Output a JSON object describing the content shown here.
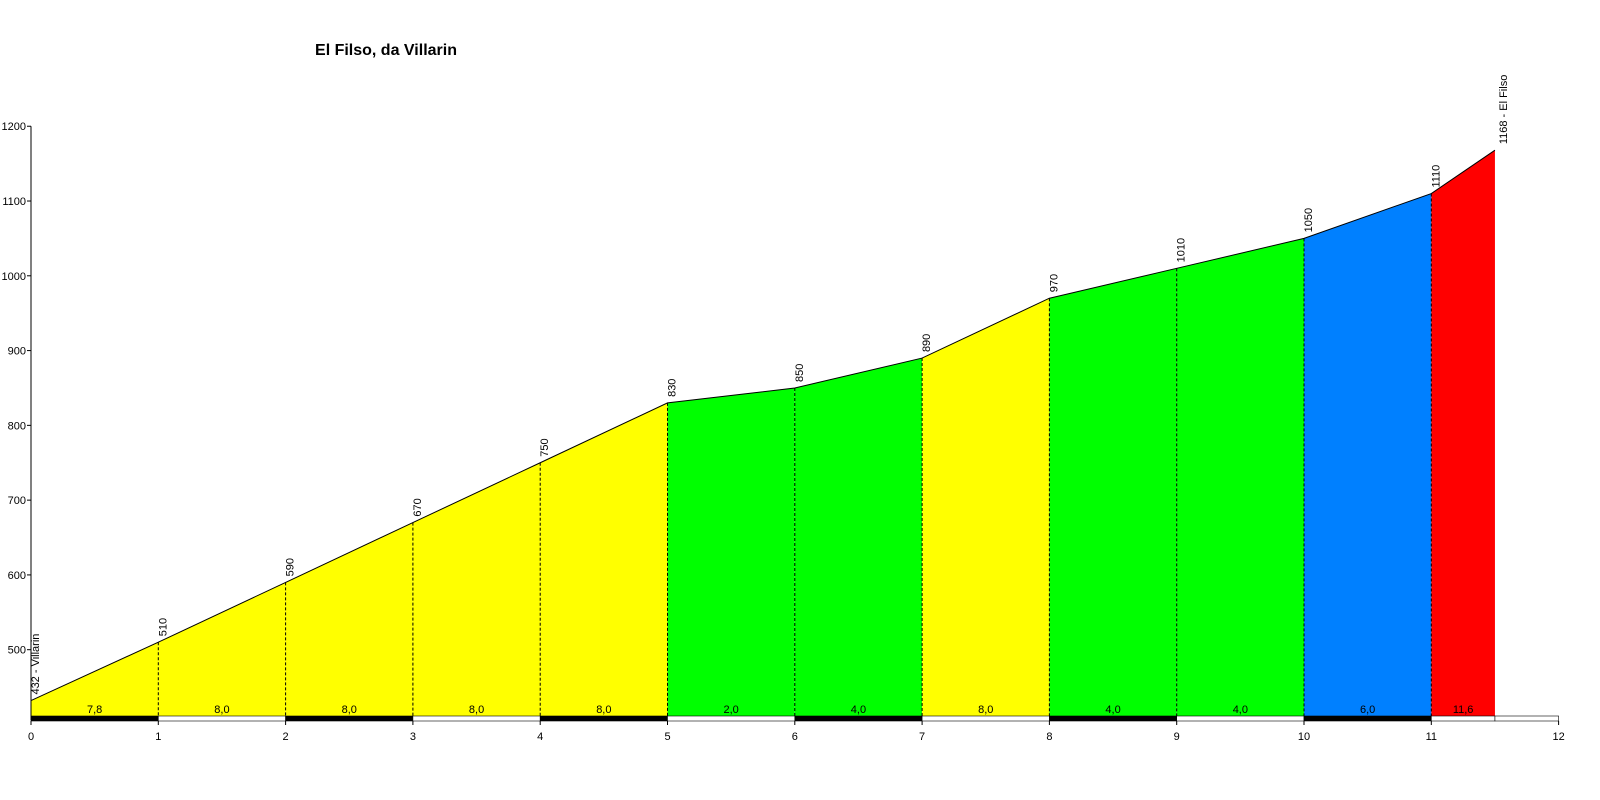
{
  "chart_data": {
    "type": "area",
    "title": "El Filso, da Villarin",
    "xlabel": "",
    "ylabel": "",
    "xlim": [
      0,
      12
    ],
    "ylim": [
      410,
      1200
    ],
    "x_ticks": [
      "0",
      "1",
      "2",
      "3",
      "4",
      "5",
      "6",
      "7",
      "8",
      "9",
      "10",
      "11",
      "12"
    ],
    "y_ticks": [
      "500",
      "600",
      "700",
      "800",
      "900",
      "1000",
      "1100",
      "1200"
    ],
    "points": [
      {
        "km": 0,
        "elev": 432,
        "label": "432 - Villarin"
      },
      {
        "km": 1,
        "elev": 510,
        "label": "510"
      },
      {
        "km": 2,
        "elev": 590,
        "label": "590"
      },
      {
        "km": 3,
        "elev": 670,
        "label": "670"
      },
      {
        "km": 4,
        "elev": 750,
        "label": "750"
      },
      {
        "km": 5,
        "elev": 830,
        "label": "830"
      },
      {
        "km": 6,
        "elev": 850,
        "label": "850"
      },
      {
        "km": 7,
        "elev": 890,
        "label": "890"
      },
      {
        "km": 8,
        "elev": 970,
        "label": "970"
      },
      {
        "km": 9,
        "elev": 1010,
        "label": "1010"
      },
      {
        "km": 10,
        "elev": 1050,
        "label": "1050"
      },
      {
        "km": 11,
        "elev": 1110,
        "label": "1110"
      },
      {
        "km": 11.5,
        "elev": 1168,
        "label": "1168 - El Filso"
      }
    ],
    "segments": [
      {
        "gradient": "7,8",
        "color": "#ffff00"
      },
      {
        "gradient": "8,0",
        "color": "#ffff00"
      },
      {
        "gradient": "8,0",
        "color": "#ffff00"
      },
      {
        "gradient": "8,0",
        "color": "#ffff00"
      },
      {
        "gradient": "8,0",
        "color": "#ffff00"
      },
      {
        "gradient": "2,0",
        "color": "#00ff00"
      },
      {
        "gradient": "4,0",
        "color": "#00ff00"
      },
      {
        "gradient": "8,0",
        "color": "#ffff00"
      },
      {
        "gradient": "4,0",
        "color": "#00ff00"
      },
      {
        "gradient": "4,0",
        "color": "#00ff00"
      },
      {
        "gradient": "6,0",
        "color": "#0080ff"
      },
      {
        "gradient": "11,6",
        "color": "#ff0000"
      }
    ],
    "grid": false
  }
}
